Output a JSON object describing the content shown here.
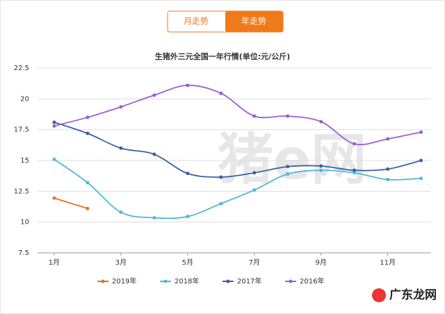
{
  "tabs": [
    "月走势",
    "年走势"
  ],
  "watermark": "猪e网",
  "logo": "广东龙网",
  "chart_data": {
    "type": "line",
    "title": "生猪外三元全国一年行情(单位:元/公斤)",
    "x": [
      1,
      2,
      3,
      4,
      5,
      6,
      7,
      8,
      9,
      10,
      11,
      12
    ],
    "xlim": [
      0.5,
      12.3
    ],
    "xticks": [
      {
        "value": 1,
        "label": "1月"
      },
      {
        "value": 3,
        "label": "3月"
      },
      {
        "value": 5,
        "label": "5月"
      },
      {
        "value": 7,
        "label": "7月"
      },
      {
        "value": 9,
        "label": "9月"
      },
      {
        "value": 11,
        "label": "11月"
      }
    ],
    "ylim": [
      7.5,
      22.5
    ],
    "yticks": [
      7.5,
      10,
      12.5,
      15,
      17.5,
      20,
      22.5
    ],
    "grid": true,
    "legend": "bottom",
    "series": [
      {
        "name": "2019年",
        "color": "#e8702a",
        "values": [
          11.95,
          11.1,
          null,
          null,
          null,
          null,
          null,
          null,
          null,
          null,
          null,
          null
        ]
      },
      {
        "name": "2018年",
        "color": "#4db8d8",
        "values": [
          15.1,
          13.2,
          10.8,
          10.35,
          10.45,
          11.5,
          12.6,
          13.9,
          14.2,
          14.0,
          13.45,
          13.55
        ]
      },
      {
        "name": "2017年",
        "color": "#3c5fa8",
        "values": [
          18.1,
          17.2,
          16.0,
          15.5,
          13.95,
          13.65,
          14.0,
          14.5,
          14.55,
          14.2,
          14.3,
          15.0
        ]
      },
      {
        "name": "2016年",
        "color": "#9a5fcf",
        "values": [
          17.8,
          18.5,
          19.35,
          20.3,
          21.1,
          20.45,
          18.6,
          18.6,
          18.15,
          16.35,
          16.75,
          17.3
        ]
      }
    ]
  }
}
